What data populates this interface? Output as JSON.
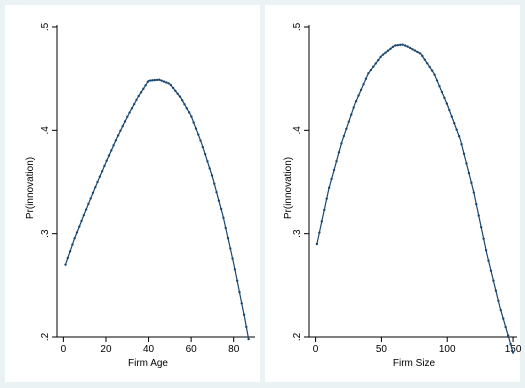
{
  "chart_data": [
    {
      "type": "line",
      "title": "",
      "xlabel": "Firm Age",
      "ylabel": "Pr(innovation)",
      "xlim": [
        -3,
        90
      ],
      "ylim": [
        0.2,
        0.5
      ],
      "xticks": [
        0,
        20,
        40,
        60,
        80
      ],
      "xtick_labels": [
        "0",
        "20",
        "40",
        "60",
        "80"
      ],
      "yticks": [
        0.2,
        0.3,
        0.4,
        0.5
      ],
      "ytick_labels": [
        ".2",
        ".3",
        ".4",
        ".5"
      ],
      "grid": false,
      "series": [
        {
          "x": [
            1,
            5,
            10,
            15,
            20,
            25,
            30,
            35,
            40,
            45,
            50,
            55,
            60,
            65,
            70,
            75,
            80,
            85,
            87
          ],
          "y": [
            0.27,
            0.294,
            0.32,
            0.345,
            0.369,
            0.392,
            0.413,
            0.432,
            0.448,
            0.449,
            0.445,
            0.432,
            0.414,
            0.387,
            0.355,
            0.317,
            0.271,
            0.22,
            0.198
          ]
        }
      ]
    },
    {
      "type": "line",
      "title": "",
      "xlabel": "Firm Size",
      "ylabel": "Pr(innovation)",
      "xlim": [
        -5,
        153
      ],
      "ylim": [
        0.2,
        0.5
      ],
      "xticks": [
        0,
        50,
        100,
        150
      ],
      "xtick_labels": [
        "0",
        "50",
        "100",
        "150"
      ],
      "yticks": [
        0.2,
        0.3,
        0.4,
        0.5
      ],
      "ytick_labels": [
        ".2",
        ".3",
        ".4",
        ".5"
      ],
      "grid": false,
      "series": [
        {
          "x": [
            1,
            10,
            20,
            30,
            40,
            50,
            60,
            66,
            70,
            80,
            90,
            100,
            110,
            120,
            130,
            140,
            150
          ],
          "y": [
            0.29,
            0.343,
            0.389,
            0.426,
            0.455,
            0.472,
            0.482,
            0.483,
            0.481,
            0.474,
            0.455,
            0.425,
            0.391,
            0.341,
            0.281,
            0.229,
            0.185
          ]
        }
      ]
    }
  ],
  "colors": {
    "outer_background": "#eaf2f3",
    "panel_background": "#ffffff",
    "line": "#1a476f"
  }
}
